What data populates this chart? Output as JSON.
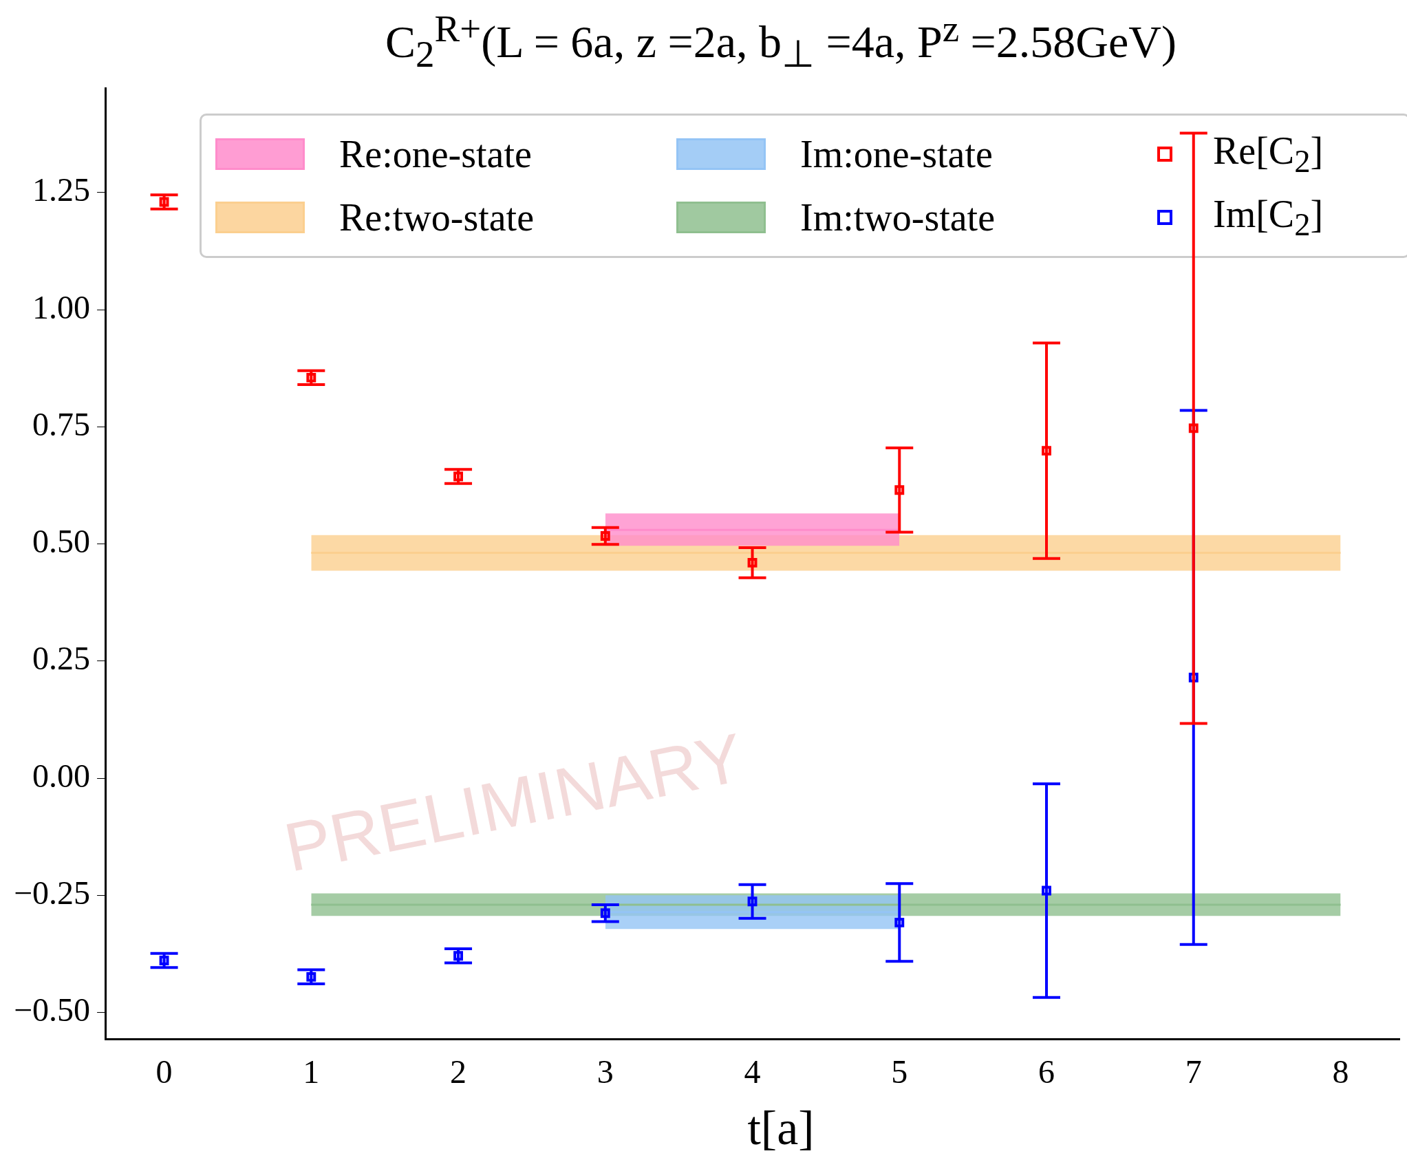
{
  "chart_data": {
    "type": "scatter",
    "title": "C$_{2}$$^{R+}$(L = 6a, z =2a, b$_{⊥}$ =4a, P$^{z}$ =2.58GeV)",
    "xlabel": "t[a]",
    "xlim": [
      -0.4,
      8.4
    ],
    "xticks": [
      0,
      1,
      2,
      3,
      4,
      5,
      6,
      7,
      8
    ],
    "ylim": [
      -0.557,
      1.473
    ],
    "yticks": [
      {
        "value": -0.5,
        "label": "−0.50"
      },
      {
        "value": -0.25,
        "label": "−0.25"
      },
      {
        "value": 0,
        "label": "0.00"
      },
      {
        "value": 0.25,
        "label": "0.25"
      },
      {
        "value": 0.5,
        "label": "0.50"
      },
      {
        "value": 0.75,
        "label": "0.75"
      },
      {
        "value": 1,
        "label": "1.00"
      },
      {
        "value": 1.25,
        "label": "1.25"
      }
    ],
    "grid": false,
    "legend": "top",
    "series": [
      {
        "name": "Re:one-state",
        "type": "line",
        "color": "#ff8ccb",
        "x": [
          3,
          5
        ],
        "values": [
          0.53,
          0.53
        ],
        "lower": [
          0.496,
          0.496
        ],
        "upper": [
          0.565,
          0.565
        ]
      },
      {
        "name": "Re:two-state",
        "type": "line",
        "color": "#fbcf8f",
        "x": [
          1,
          8
        ],
        "values": [
          0.481,
          0.481
        ],
        "lower": [
          0.443,
          0.443
        ],
        "upper": [
          0.519,
          0.519
        ]
      },
      {
        "name": "Im:one-state",
        "type": "line",
        "color": "#94c4f5",
        "x": [
          3,
          5
        ],
        "values": [
          -0.286,
          -0.286
        ],
        "lower": [
          -0.322,
          -0.322
        ],
        "upper": [
          -0.25,
          -0.25
        ]
      },
      {
        "name": "Im:two-state",
        "type": "line",
        "color": "#8fbf8f",
        "x": [
          1,
          8
        ],
        "values": [
          -0.27,
          -0.27
        ],
        "lower": [
          -0.294,
          -0.294
        ],
        "upper": [
          -0.246,
          -0.246
        ]
      },
      {
        "name": "Re[C$_{2}$]",
        "type": "scatter",
        "marker": "square",
        "color": "#ff0000",
        "x": [
          0,
          1,
          2,
          3,
          4,
          5,
          6,
          7
        ],
        "values": [
          1.23,
          0.855,
          0.644,
          0.517,
          0.46,
          0.615,
          0.699,
          0.747
        ],
        "errors": [
          0.015,
          0.015,
          0.015,
          0.018,
          0.032,
          0.09,
          0.23,
          0.63
        ]
      },
      {
        "name": "Im[C$_{2}$]",
        "type": "scatter",
        "marker": "square",
        "color": "#0000ff",
        "x": [
          0,
          1,
          2,
          3,
          4,
          5,
          6,
          7
        ],
        "values": [
          -0.389,
          -0.424,
          -0.379,
          -0.288,
          -0.263,
          -0.308,
          -0.24,
          0.215
        ],
        "errors": [
          0.015,
          0.015,
          0.015,
          0.018,
          0.036,
          0.083,
          0.228,
          0.57
        ]
      }
    ],
    "annotations": [
      "PRELIMINARY"
    ]
  }
}
